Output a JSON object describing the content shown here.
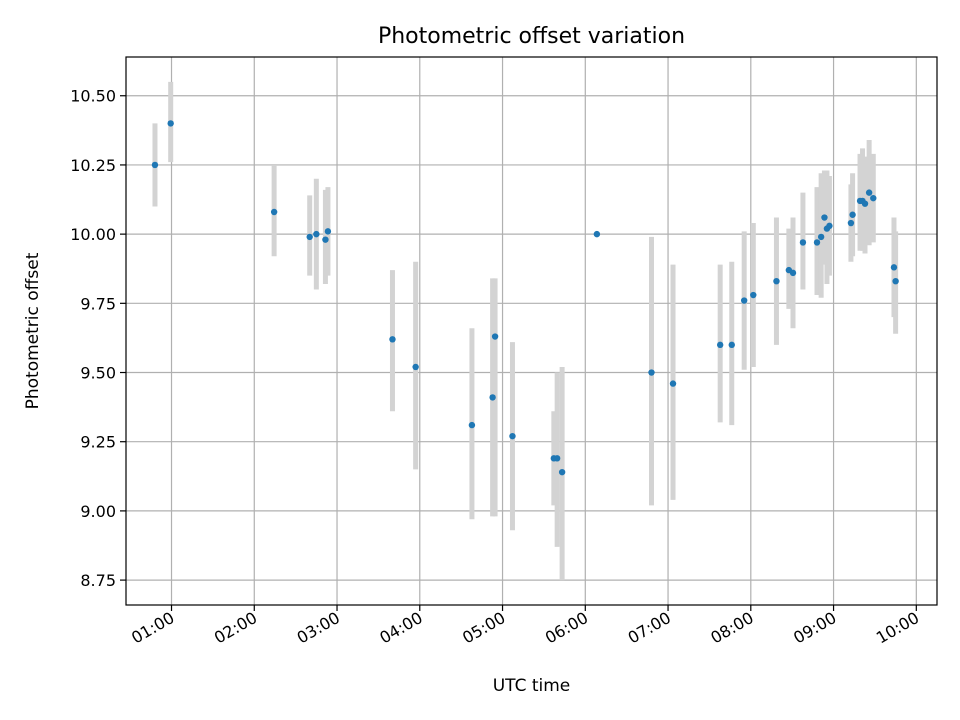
{
  "chart_data": {
    "type": "scatter",
    "title": "Photometric offset variation",
    "xlabel": "UTC time",
    "ylabel": "Photometric offset",
    "x_unit": "hours UTC",
    "xlim": [
      0.45,
      10.25
    ],
    "ylim": [
      8.66,
      10.64
    ],
    "x_ticks": [
      {
        "value": 1,
        "label": "01:00"
      },
      {
        "value": 2,
        "label": "02:00"
      },
      {
        "value": 3,
        "label": "03:00"
      },
      {
        "value": 4,
        "label": "04:00"
      },
      {
        "value": 5,
        "label": "05:00"
      },
      {
        "value": 6,
        "label": "06:00"
      },
      {
        "value": 7,
        "label": "07:00"
      },
      {
        "value": 8,
        "label": "08:00"
      },
      {
        "value": 9,
        "label": "09:00"
      },
      {
        "value": 10,
        "label": "10:00"
      }
    ],
    "y_ticks": [
      {
        "value": 8.75,
        "label": "8.75"
      },
      {
        "value": 9.0,
        "label": "9.00"
      },
      {
        "value": 9.25,
        "label": "9.25"
      },
      {
        "value": 9.5,
        "label": "9.50"
      },
      {
        "value": 9.75,
        "label": "9.75"
      },
      {
        "value": 10.0,
        "label": "10.00"
      },
      {
        "value": 10.25,
        "label": "10.25"
      },
      {
        "value": 10.5,
        "label": "10.50"
      }
    ],
    "grid": true,
    "point_color": "#1f77b4",
    "errorbar_color": "#d3d3d3",
    "points": [
      {
        "x": 0.8,
        "y": 10.25,
        "lo": 10.1,
        "hi": 10.4
      },
      {
        "x": 0.99,
        "y": 10.4,
        "lo": 10.26,
        "hi": 10.55
      },
      {
        "x": 2.24,
        "y": 10.08,
        "lo": 9.92,
        "hi": 10.25
      },
      {
        "x": 2.67,
        "y": 9.99,
        "lo": 9.85,
        "hi": 10.14
      },
      {
        "x": 2.75,
        "y": 10.0,
        "lo": 9.8,
        "hi": 10.2
      },
      {
        "x": 2.86,
        "y": 9.98,
        "lo": 9.82,
        "hi": 10.16
      },
      {
        "x": 2.89,
        "y": 10.01,
        "lo": 9.85,
        "hi": 10.17
      },
      {
        "x": 3.67,
        "y": 9.62,
        "lo": 9.36,
        "hi": 9.87
      },
      {
        "x": 3.95,
        "y": 9.52,
        "lo": 9.15,
        "hi": 9.9
      },
      {
        "x": 4.63,
        "y": 9.31,
        "lo": 8.97,
        "hi": 9.66
      },
      {
        "x": 4.88,
        "y": 9.41,
        "lo": 8.98,
        "hi": 9.84
      },
      {
        "x": 4.91,
        "y": 9.63,
        "lo": 8.98,
        "hi": 9.84
      },
      {
        "x": 5.12,
        "y": 9.27,
        "lo": 8.93,
        "hi": 9.61
      },
      {
        "x": 5.62,
        "y": 9.19,
        "lo": 9.02,
        "hi": 9.36
      },
      {
        "x": 5.66,
        "y": 9.19,
        "lo": 8.87,
        "hi": 9.5
      },
      {
        "x": 5.72,
        "y": 9.14,
        "lo": 8.75,
        "hi": 9.52
      },
      {
        "x": 6.14,
        "y": 10.0
      },
      {
        "x": 6.8,
        "y": 9.5,
        "lo": 9.02,
        "hi": 9.99
      },
      {
        "x": 7.06,
        "y": 9.46,
        "lo": 9.04,
        "hi": 9.89
      },
      {
        "x": 7.63,
        "y": 9.6,
        "lo": 9.32,
        "hi": 9.89
      },
      {
        "x": 7.77,
        "y": 9.6,
        "lo": 9.31,
        "hi": 9.9
      },
      {
        "x": 7.92,
        "y": 9.76,
        "lo": 9.51,
        "hi": 10.01
      },
      {
        "x": 8.03,
        "y": 9.78,
        "lo": 9.52,
        "hi": 10.04
      },
      {
        "x": 8.31,
        "y": 9.83,
        "lo": 9.6,
        "hi": 10.06
      },
      {
        "x": 8.46,
        "y": 9.87,
        "lo": 9.73,
        "hi": 10.02
      },
      {
        "x": 8.51,
        "y": 9.86,
        "lo": 9.66,
        "hi": 10.06
      },
      {
        "x": 8.63,
        "y": 9.97,
        "lo": 9.8,
        "hi": 10.15
      },
      {
        "x": 8.8,
        "y": 9.97,
        "lo": 9.78,
        "hi": 10.17
      },
      {
        "x": 8.85,
        "y": 9.99,
        "lo": 9.77,
        "hi": 10.22
      },
      {
        "x": 8.89,
        "y": 10.06,
        "lo": 9.89,
        "hi": 10.23
      },
      {
        "x": 8.92,
        "y": 10.02,
        "lo": 9.82,
        "hi": 10.23
      },
      {
        "x": 8.95,
        "y": 10.03,
        "lo": 9.85,
        "hi": 10.21
      },
      {
        "x": 9.21,
        "y": 10.04,
        "lo": 9.9,
        "hi": 10.18
      },
      {
        "x": 9.23,
        "y": 10.07,
        "lo": 9.92,
        "hi": 10.22
      },
      {
        "x": 9.32,
        "y": 10.12,
        "lo": 9.94,
        "hi": 10.29
      },
      {
        "x": 9.35,
        "y": 10.12,
        "lo": 9.94,
        "hi": 10.31
      },
      {
        "x": 9.38,
        "y": 10.11,
        "lo": 9.93,
        "hi": 10.28
      },
      {
        "x": 9.43,
        "y": 10.15,
        "lo": 9.96,
        "hi": 10.34
      },
      {
        "x": 9.48,
        "y": 10.13,
        "lo": 9.97,
        "hi": 10.29
      },
      {
        "x": 9.73,
        "y": 9.88,
        "lo": 9.7,
        "hi": 10.06
      },
      {
        "x": 9.75,
        "y": 9.83,
        "lo": 9.64,
        "hi": 10.01
      }
    ]
  }
}
